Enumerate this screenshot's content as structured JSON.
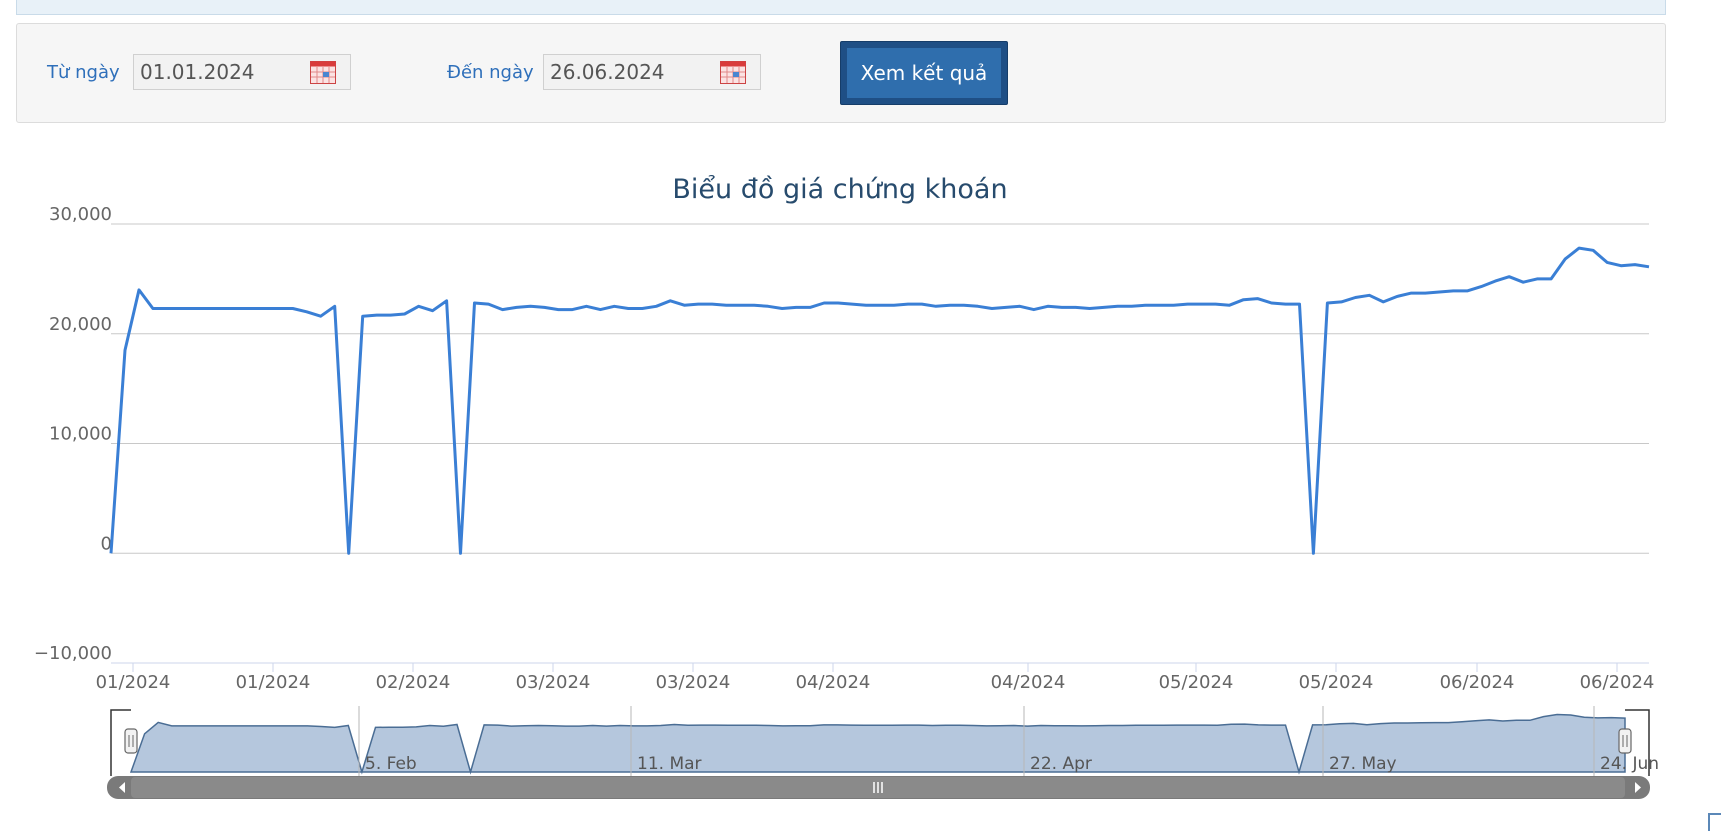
{
  "filter": {
    "from_label": "Từ ngày",
    "from_value": "01.01.2024",
    "to_label": "Đến ngày",
    "to_value": "26.06.2024",
    "submit_label": "Xem kết quả"
  },
  "chart_data": {
    "type": "line",
    "title": "Biểu đồ giá chứng khoán",
    "xlabel": "",
    "ylabel": "",
    "ylim": [
      -10000,
      30000
    ],
    "y_ticks": [
      "30,000",
      "20,000",
      "10,000",
      "0",
      "−10,000"
    ],
    "x_ticks": [
      "01/2024",
      "01/2024",
      "02/2024",
      "03/2024",
      "03/2024",
      "04/2024",
      "04/2024",
      "05/2024",
      "05/2024",
      "06/2024",
      "06/2024"
    ],
    "navigator_labels": [
      "5. Feb",
      "11. Mar",
      "22. Apr",
      "27. May",
      "24. Jun"
    ],
    "series": [
      {
        "color": "#3a7fd5",
        "values": [
          0,
          18500,
          24000,
          22300,
          22300,
          22300,
          22300,
          22300,
          22300,
          22300,
          22300,
          22300,
          22300,
          22300,
          22000,
          21600,
          22500,
          0,
          21600,
          21700,
          21700,
          21800,
          22500,
          22100,
          23000,
          0,
          22800,
          22700,
          22200,
          22400,
          22500,
          22400,
          22200,
          22200,
          22500,
          22200,
          22500,
          22300,
          22300,
          22500,
          23000,
          22600,
          22700,
          22700,
          22600,
          22600,
          22600,
          22500,
          22300,
          22400,
          22400,
          22800,
          22800,
          22700,
          22600,
          22600,
          22600,
          22700,
          22700,
          22500,
          22600,
          22600,
          22500,
          22300,
          22400,
          22500,
          22200,
          22500,
          22400,
          22400,
          22300,
          22400,
          22500,
          22500,
          22600,
          22600,
          22600,
          22700,
          22700,
          22700,
          22600,
          23100,
          23200,
          22800,
          22700,
          22700,
          0,
          22800,
          22900,
          23300,
          23500,
          22900,
          23400,
          23700,
          23700,
          23800,
          23900,
          23900,
          24300,
          24800,
          25200,
          24700,
          25000,
          25000,
          26800,
          27800,
          27600,
          26500,
          26200,
          26300,
          26100
        ]
      }
    ],
    "grid": true,
    "legend": "none"
  }
}
